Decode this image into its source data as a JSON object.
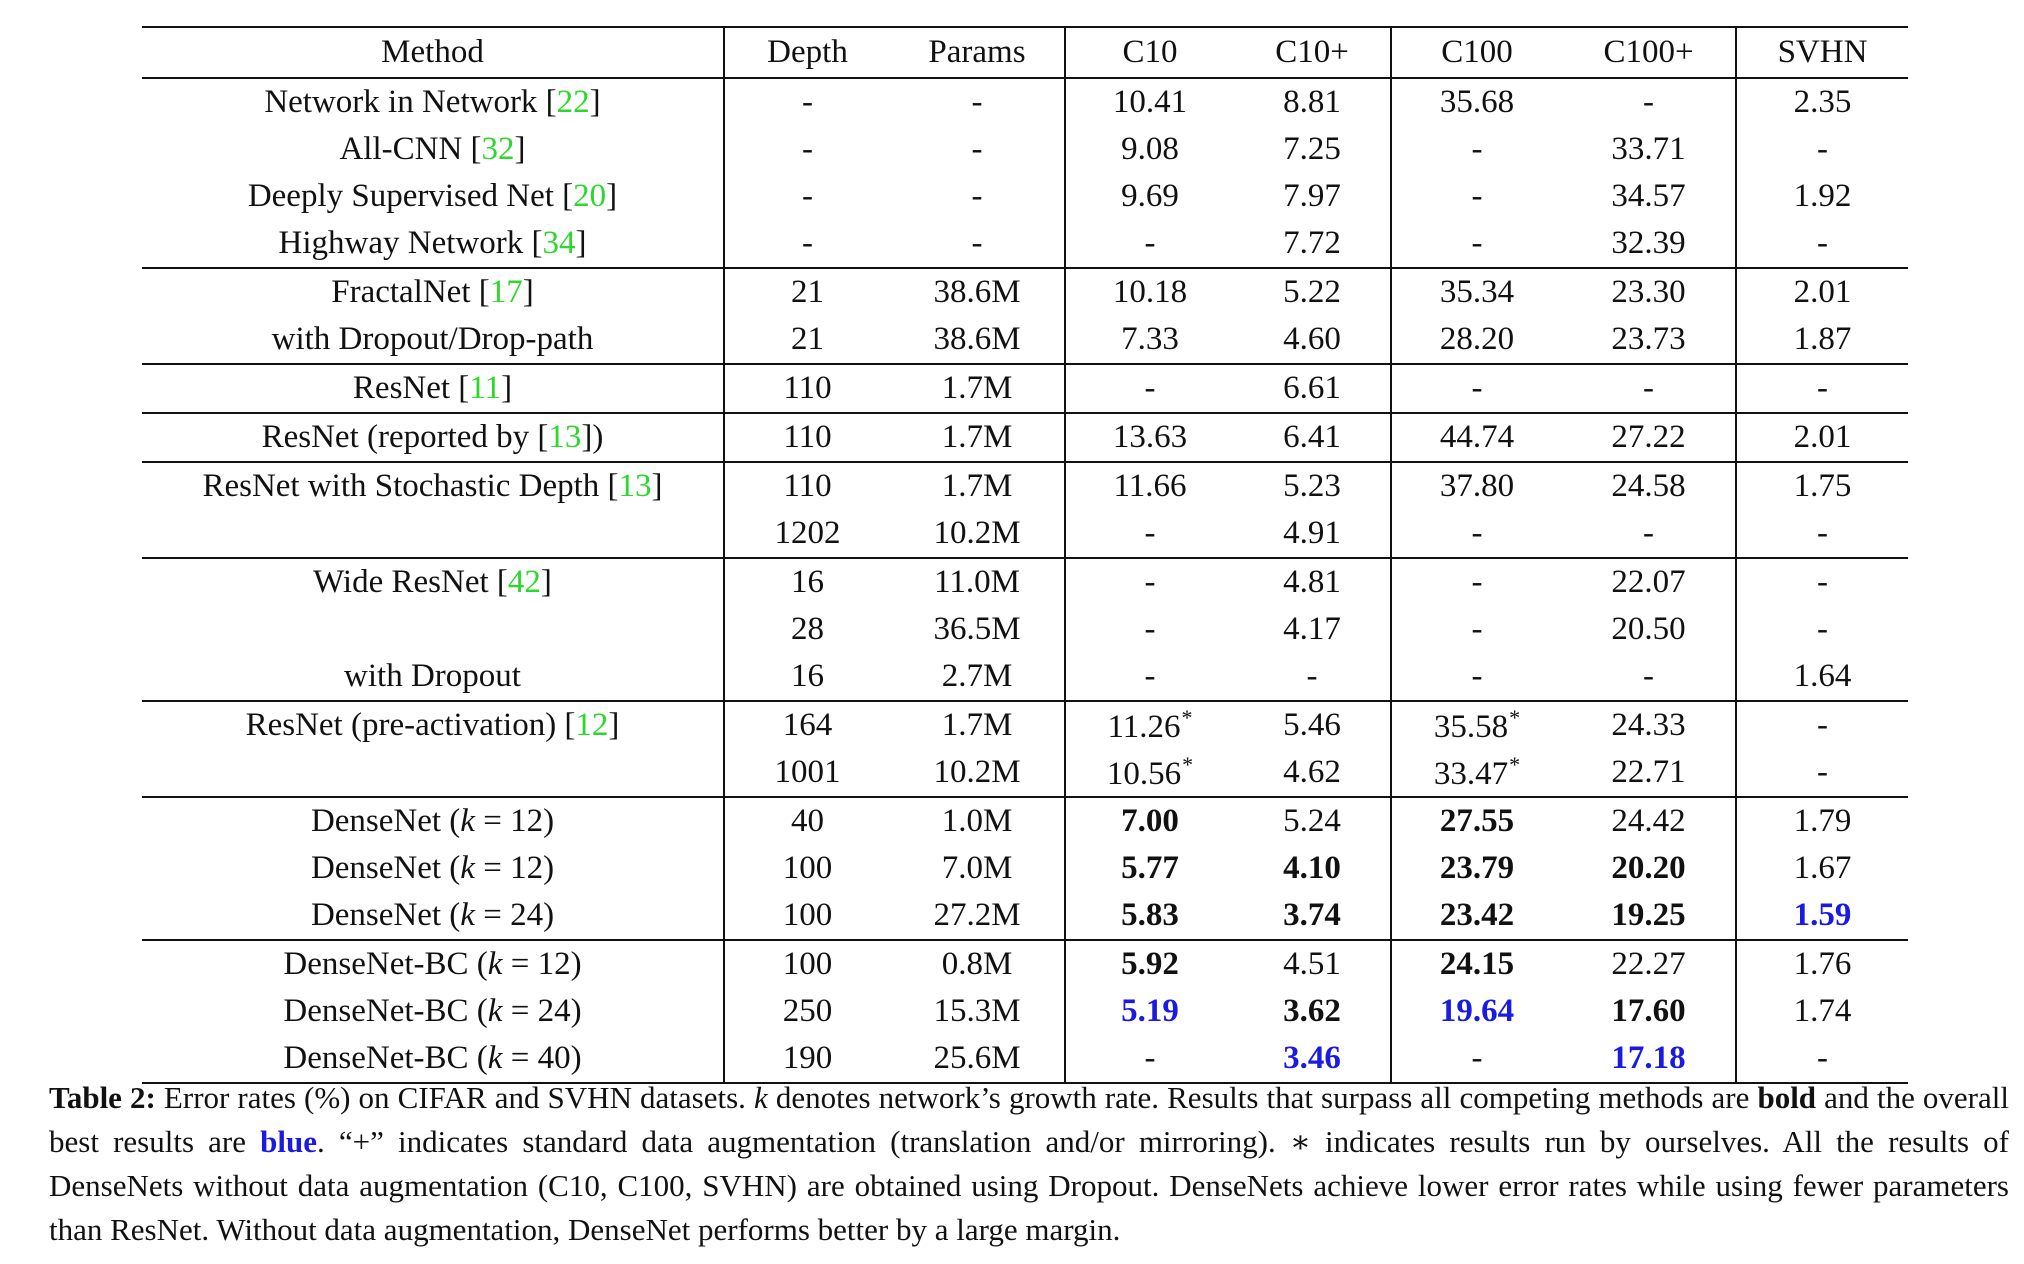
{
  "table": {
    "headers": {
      "method": "Method",
      "depth": "Depth",
      "params": "Params",
      "c10": "C10",
      "c10p": "C10+",
      "c100": "C100",
      "c100p": "C100+",
      "svhn": "SVHN"
    },
    "groups": [
      [
        {
          "method": [
            "Network in Network [",
            {
              "ref": "22"
            },
            "]"
          ],
          "depth": "-",
          "params": "-",
          "c10": "10.41",
          "c10p": "8.81",
          "c100": "35.68",
          "c100p": "-",
          "svhn": "2.35"
        },
        {
          "method": [
            "All-CNN [",
            {
              "ref": "32"
            },
            "]"
          ],
          "depth": "-",
          "params": "-",
          "c10": "9.08",
          "c10p": "7.25",
          "c100": "-",
          "c100p": "33.71",
          "svhn": "-"
        },
        {
          "method": [
            "Deeply Supervised Net [",
            {
              "ref": "20"
            },
            "]"
          ],
          "depth": "-",
          "params": "-",
          "c10": "9.69",
          "c10p": "7.97",
          "c100": "-",
          "c100p": "34.57",
          "svhn": "1.92"
        },
        {
          "method": [
            "Highway Network [",
            {
              "ref": "34"
            },
            "]"
          ],
          "depth": "-",
          "params": "-",
          "c10": "-",
          "c10p": "7.72",
          "c100": "-",
          "c100p": "32.39",
          "svhn": "-"
        }
      ],
      [
        {
          "method": [
            "FractalNet [",
            {
              "ref": "17"
            },
            "]"
          ],
          "depth": "21",
          "params": "38.6M",
          "c10": "10.18",
          "c10p": "5.22",
          "c100": "35.34",
          "c100p": "23.30",
          "svhn": "2.01"
        },
        {
          "method": [
            "with Dropout/Drop-path"
          ],
          "depth": "21",
          "params": "38.6M",
          "c10": "7.33",
          "c10p": "4.60",
          "c100": "28.20",
          "c100p": "23.73",
          "svhn": "1.87"
        }
      ],
      [
        {
          "method": [
            "ResNet [",
            {
              "ref": "11"
            },
            "]"
          ],
          "depth": "110",
          "params": "1.7M",
          "c10": "-",
          "c10p": "6.61",
          "c100": "-",
          "c100p": "-",
          "svhn": "-"
        }
      ],
      [
        {
          "method": [
            "ResNet (reported by [",
            {
              "ref": "13"
            },
            "])"
          ],
          "depth": "110",
          "params": "1.7M",
          "c10": "13.63",
          "c10p": "6.41",
          "c100": "44.74",
          "c100p": "27.22",
          "svhn": "2.01"
        }
      ],
      [
        {
          "method": [
            "ResNet with Stochastic Depth [",
            {
              "ref": "13"
            },
            "]"
          ],
          "depth": "110",
          "params": "1.7M",
          "c10": "11.66",
          "c10p": "5.23",
          "c100": "37.80",
          "c100p": "24.58",
          "svhn": "1.75"
        },
        {
          "method": [],
          "depth": "1202",
          "params": "10.2M",
          "c10": "-",
          "c10p": "4.91",
          "c100": "-",
          "c100p": "-",
          "svhn": "-"
        }
      ],
      [
        {
          "method": [
            "Wide ResNet [",
            {
              "ref": "42"
            },
            "]"
          ],
          "depth": "16",
          "params": "11.0M",
          "c10": "-",
          "c10p": "4.81",
          "c100": "-",
          "c100p": "22.07",
          "svhn": "-"
        },
        {
          "method": [],
          "depth": "28",
          "params": "36.5M",
          "c10": "-",
          "c10p": "4.17",
          "c100": "-",
          "c100p": "20.50",
          "svhn": "-"
        },
        {
          "method": [
            "with Dropout"
          ],
          "depth": "16",
          "params": "2.7M",
          "c10": "-",
          "c10p": "-",
          "c100": "-",
          "c100p": "-",
          "svhn": "1.64"
        }
      ],
      [
        {
          "method": [
            "ResNet (pre-activation) [",
            {
              "ref": "12"
            },
            "]"
          ],
          "depth": "164",
          "params": "1.7M",
          "c10": {
            "v": "11.26",
            "star": "*"
          },
          "c10p": "5.46",
          "c100": {
            "v": "35.58",
            "star": "*"
          },
          "c100p": "24.33",
          "svhn": "-"
        },
        {
          "method": [],
          "depth": "1001",
          "params": "10.2M",
          "c10": {
            "v": "10.56",
            "star": "*"
          },
          "c10p": "4.62",
          "c100": {
            "v": "33.47",
            "star": "*"
          },
          "c100p": "22.71",
          "svhn": "-"
        }
      ],
      [
        {
          "method": [
            "DenseNet (",
            {
              "k": "k"
            },
            " = 12)"
          ],
          "depth": "40",
          "params": "1.0M",
          "c10": {
            "v": "7.00",
            "s": "bold"
          },
          "c10p": "5.24",
          "c100": {
            "v": "27.55",
            "s": "bold"
          },
          "c100p": "24.42",
          "svhn": "1.79"
        },
        {
          "method": [
            "DenseNet (",
            {
              "k": "k"
            },
            " = 12)"
          ],
          "depth": "100",
          "params": "7.0M",
          "c10": {
            "v": "5.77",
            "s": "bold"
          },
          "c10p": {
            "v": "4.10",
            "s": "bold"
          },
          "c100": {
            "v": "23.79",
            "s": "bold"
          },
          "c100p": {
            "v": "20.20",
            "s": "bold"
          },
          "svhn": "1.67"
        },
        {
          "method": [
            "DenseNet (",
            {
              "k": "k"
            },
            " = 24)"
          ],
          "depth": "100",
          "params": "27.2M",
          "c10": {
            "v": "5.83",
            "s": "bold"
          },
          "c10p": {
            "v": "3.74",
            "s": "bold"
          },
          "c100": {
            "v": "23.42",
            "s": "bold"
          },
          "c100p": {
            "v": "19.25",
            "s": "bold"
          },
          "svhn": {
            "v": "1.59",
            "s": "blue"
          }
        }
      ],
      [
        {
          "method": [
            "DenseNet-BC (",
            {
              "k": "k"
            },
            " = 12)"
          ],
          "depth": "100",
          "params": "0.8M",
          "c10": {
            "v": "5.92",
            "s": "bold"
          },
          "c10p": "4.51",
          "c100": {
            "v": "24.15",
            "s": "bold"
          },
          "c100p": "22.27",
          "svhn": "1.76"
        },
        {
          "method": [
            "DenseNet-BC (",
            {
              "k": "k"
            },
            " = 24)"
          ],
          "depth": "250",
          "params": "15.3M",
          "c10": {
            "v": "5.19",
            "s": "blue"
          },
          "c10p": {
            "v": "3.62",
            "s": "bold"
          },
          "c100": {
            "v": "19.64",
            "s": "blue"
          },
          "c100p": {
            "v": "17.60",
            "s": "bold"
          },
          "svhn": "1.74"
        },
        {
          "method": [
            "DenseNet-BC (",
            {
              "k": "k"
            },
            " = 40)"
          ],
          "depth": "190",
          "params": "25.6M",
          "c10": "-",
          "c10p": {
            "v": "3.46",
            "s": "blue"
          },
          "c100": "-",
          "c100p": {
            "v": "17.18",
            "s": "blue"
          },
          "svhn": "-"
        }
      ]
    ]
  },
  "caption": {
    "label": "Table 2:",
    "t1": " Error rates (%) on CIFAR and SVHN datasets. ",
    "k": "k",
    "t2": " denotes network’s growth rate. Results that surpass all competing methods are ",
    "bold_word": "bold",
    "t3": " and the overall best results are ",
    "blue_word": "blue",
    "t4": ". “+” indicates standard data augmentation (translation and/or mirroring). ∗ indicates results run by ourselves. All the results of DenseNets without data augmentation (C10, C100, SVHN) are obtained using Dropout. DenseNets achieve lower error rates while using fewer parameters than ResNet. Without data augmentation, DenseNet performs better by a large margin."
  },
  "colors": {
    "reference": "#2bd82b",
    "best": "#1a1ae0",
    "text": "#111111"
  }
}
